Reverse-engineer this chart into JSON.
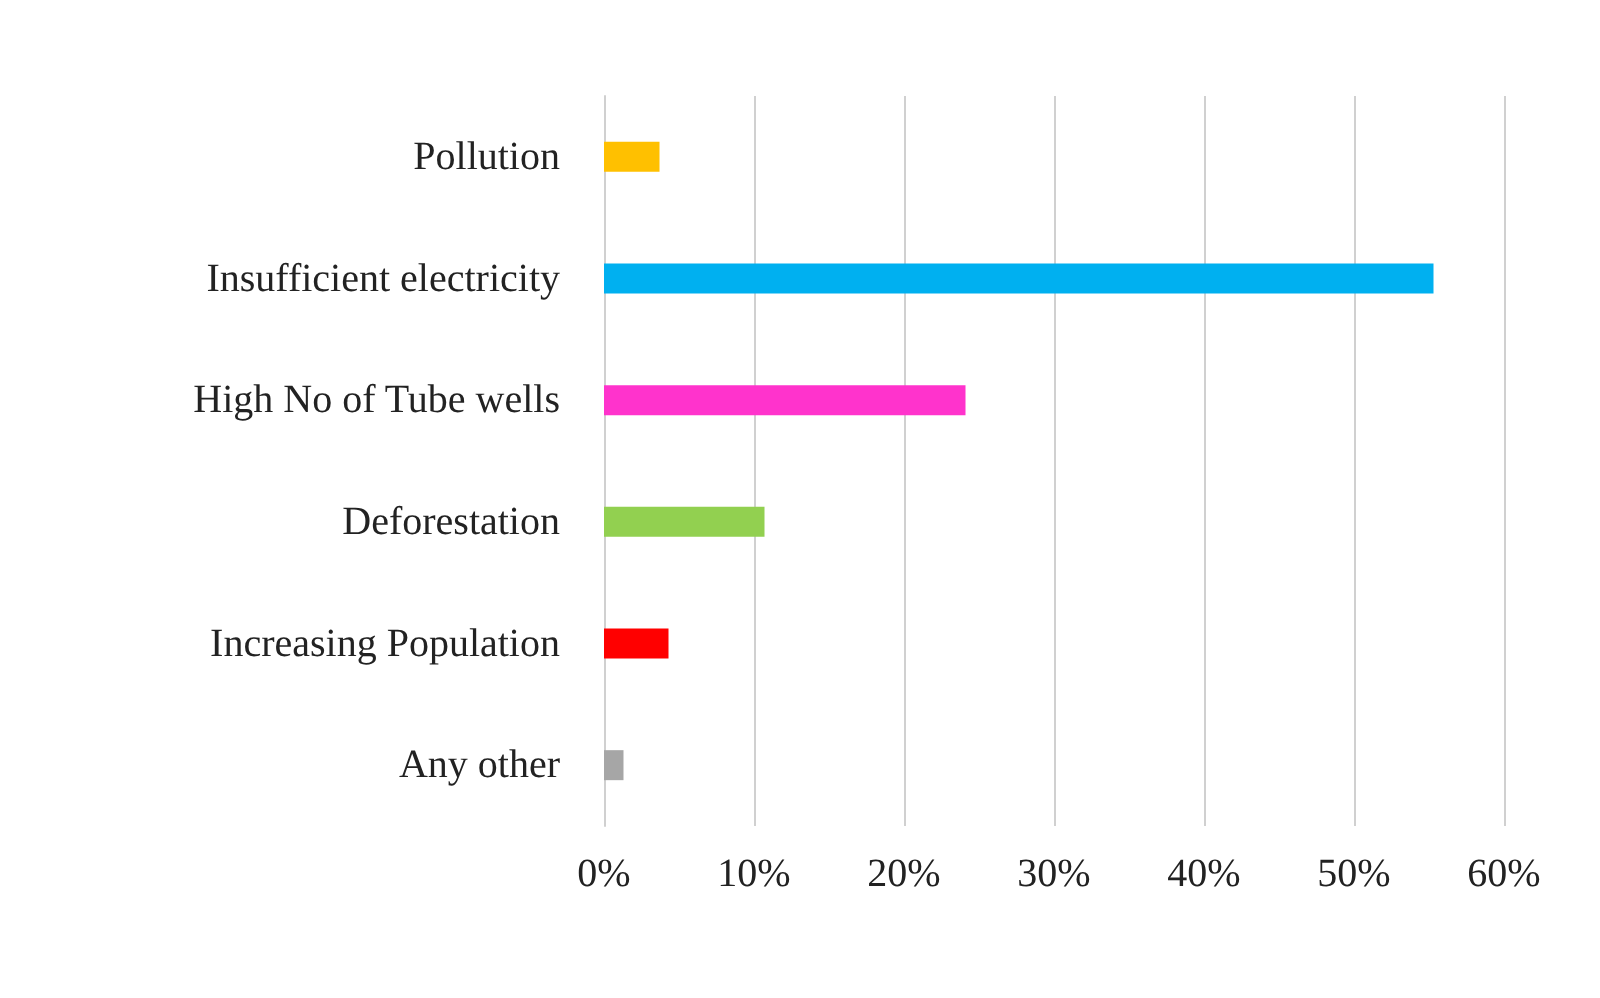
{
  "chart_data": {
    "type": "bar",
    "orientation": "horizontal",
    "categories": [
      "Pollution",
      "Insufficient electricity",
      "High No of Tube wells",
      "Deforestation",
      "Increasing Population",
      "Any other"
    ],
    "values": [
      3.7,
      55.3,
      24.1,
      10.7,
      4.3,
      1.3
    ],
    "colors": [
      "#ffc000",
      "#00b0f0",
      "#ff33cc",
      "#92d050",
      "#ff0000",
      "#a6a6a6"
    ],
    "xlim": [
      0,
      60
    ],
    "xticks": [
      {
        "value": 0,
        "label": "0%"
      },
      {
        "value": 10,
        "label": "10%"
      },
      {
        "value": 20,
        "label": "20%"
      },
      {
        "value": 30,
        "label": "30%"
      },
      {
        "value": 40,
        "label": "40%"
      },
      {
        "value": 50,
        "label": "50%"
      },
      {
        "value": 60,
        "label": "60%"
      }
    ],
    "grid": "x"
  }
}
